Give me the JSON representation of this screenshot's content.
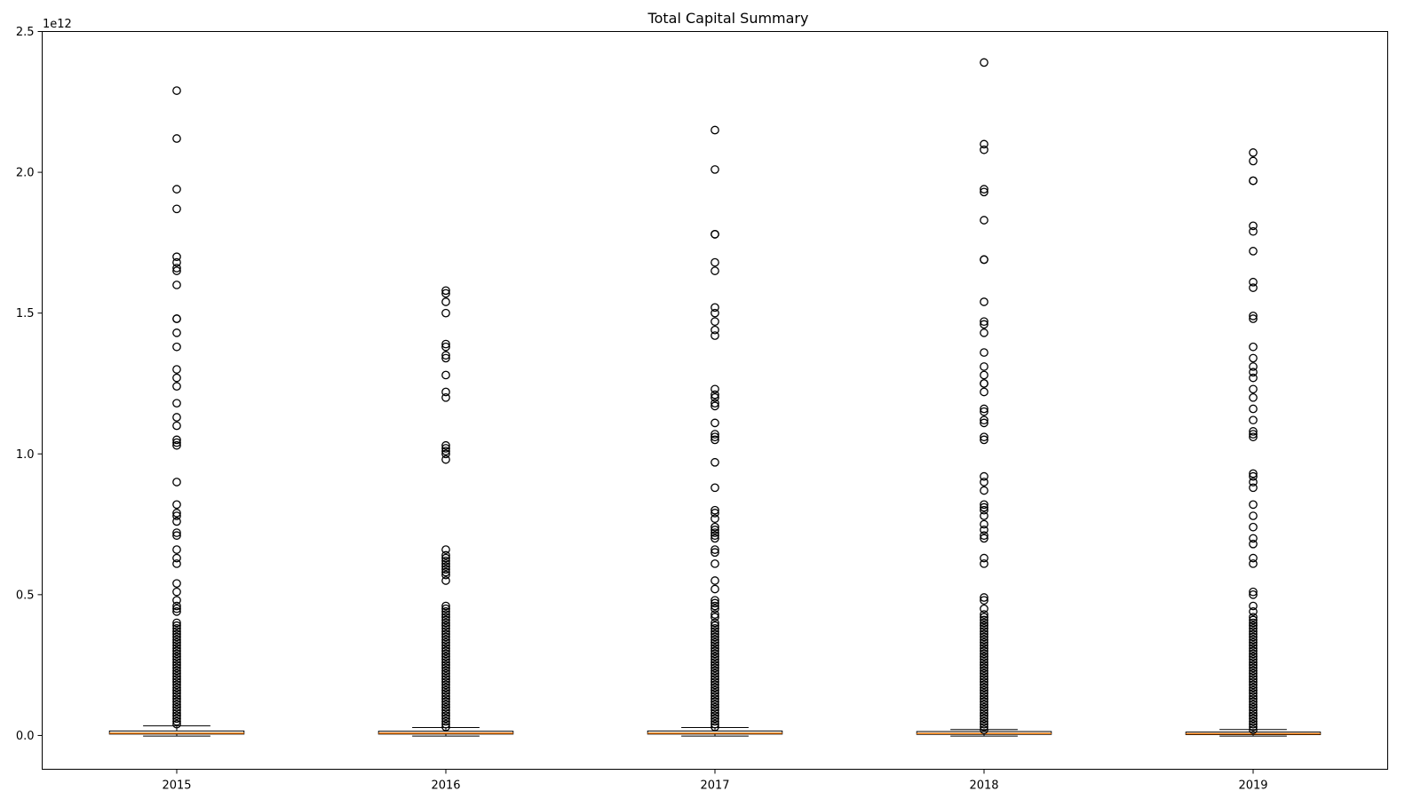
{
  "chart_data": {
    "type": "box",
    "title": "Total Capital Summary",
    "xlabel": "",
    "ylabel": "",
    "offset_text": "1e12",
    "ylim": [
      -0.12,
      2.5
    ],
    "yticks": [
      {
        "value": 0.0,
        "label": "0.0"
      },
      {
        "value": 0.5,
        "label": "0.5"
      },
      {
        "value": 1.0,
        "label": "1.0"
      },
      {
        "value": 1.5,
        "label": "1.5"
      },
      {
        "value": 2.0,
        "label": "2.0"
      },
      {
        "value": 2.5,
        "label": "2.5"
      }
    ],
    "grid": false,
    "categories": [
      "2015",
      "2016",
      "2017",
      "2018",
      "2019"
    ],
    "boxes": [
      {
        "category": "2015",
        "whisker_low": -0.002,
        "q1": 0.005,
        "median": 0.008,
        "q3": 0.016,
        "whisker_high": 0.034,
        "outliers": [
          2.29,
          2.12,
          1.94,
          1.87,
          1.7,
          1.68,
          1.66,
          1.65,
          1.6,
          1.48,
          1.48,
          1.43,
          1.38,
          1.3,
          1.27,
          1.24,
          1.18,
          1.13,
          1.1,
          1.05,
          1.04,
          1.03,
          0.9,
          0.82,
          0.79,
          0.78,
          0.76,
          0.72,
          0.71,
          0.66,
          0.63,
          0.61,
          0.54,
          0.51,
          0.48,
          0.46,
          0.45,
          0.44,
          0.4,
          0.39,
          0.38,
          0.37,
          0.36,
          0.35,
          0.34,
          0.33,
          0.32,
          0.31,
          0.3,
          0.29,
          0.28,
          0.27,
          0.26,
          0.25,
          0.24,
          0.23,
          0.22,
          0.21,
          0.2,
          0.19,
          0.18,
          0.17,
          0.16,
          0.15,
          0.14,
          0.13,
          0.12,
          0.11,
          0.1,
          0.09,
          0.08,
          0.07,
          0.06,
          0.05,
          0.04
        ]
      },
      {
        "category": "2016",
        "whisker_low": -0.002,
        "q1": 0.005,
        "median": 0.008,
        "q3": 0.015,
        "whisker_high": 0.028,
        "outliers": [
          1.58,
          1.57,
          1.54,
          1.5,
          1.39,
          1.38,
          1.35,
          1.34,
          1.28,
          1.22,
          1.2,
          1.03,
          1.02,
          1.01,
          1.0,
          0.98,
          0.66,
          0.64,
          0.63,
          0.62,
          0.61,
          0.6,
          0.59,
          0.58,
          0.57,
          0.55,
          0.46,
          0.45,
          0.44,
          0.43,
          0.42,
          0.41,
          0.4,
          0.39,
          0.38,
          0.37,
          0.36,
          0.35,
          0.34,
          0.33,
          0.32,
          0.31,
          0.3,
          0.29,
          0.28,
          0.27,
          0.26,
          0.25,
          0.24,
          0.23,
          0.22,
          0.21,
          0.2,
          0.19,
          0.18,
          0.17,
          0.16,
          0.15,
          0.14,
          0.13,
          0.12,
          0.11,
          0.1,
          0.09,
          0.08,
          0.07,
          0.06,
          0.05,
          0.04,
          0.03
        ]
      },
      {
        "category": "2017",
        "whisker_low": -0.002,
        "q1": 0.005,
        "median": 0.008,
        "q3": 0.016,
        "whisker_high": 0.028,
        "outliers": [
          2.15,
          2.01,
          1.78,
          1.78,
          1.68,
          1.65,
          1.52,
          1.5,
          1.47,
          1.44,
          1.42,
          1.23,
          1.21,
          1.2,
          1.18,
          1.17,
          1.11,
          1.07,
          1.06,
          1.05,
          0.97,
          0.88,
          0.8,
          0.79,
          0.77,
          0.74,
          0.73,
          0.72,
          0.71,
          0.7,
          0.66,
          0.65,
          0.61,
          0.55,
          0.52,
          0.48,
          0.47,
          0.46,
          0.45,
          0.43,
          0.42,
          0.4,
          0.39,
          0.38,
          0.37,
          0.36,
          0.35,
          0.34,
          0.33,
          0.32,
          0.31,
          0.3,
          0.29,
          0.28,
          0.27,
          0.26,
          0.25,
          0.24,
          0.23,
          0.22,
          0.21,
          0.2,
          0.19,
          0.18,
          0.17,
          0.16,
          0.15,
          0.14,
          0.13,
          0.12,
          0.11,
          0.1,
          0.09,
          0.08,
          0.07,
          0.06,
          0.05,
          0.04,
          0.03
        ]
      },
      {
        "category": "2018",
        "whisker_low": -0.002,
        "q1": 0.004,
        "median": 0.007,
        "q3": 0.014,
        "whisker_high": 0.021,
        "outliers": [
          2.39,
          2.1,
          2.08,
          1.94,
          1.93,
          1.83,
          1.69,
          1.69,
          1.54,
          1.47,
          1.46,
          1.43,
          1.36,
          1.31,
          1.28,
          1.25,
          1.25,
          1.22,
          1.16,
          1.15,
          1.12,
          1.11,
          1.06,
          1.05,
          0.92,
          0.9,
          0.87,
          0.82,
          0.81,
          0.8,
          0.78,
          0.75,
          0.73,
          0.71,
          0.7,
          0.63,
          0.61,
          0.49,
          0.48,
          0.45,
          0.43,
          0.42,
          0.41,
          0.4,
          0.39,
          0.38,
          0.37,
          0.36,
          0.35,
          0.34,
          0.33,
          0.32,
          0.31,
          0.3,
          0.29,
          0.28,
          0.27,
          0.26,
          0.25,
          0.24,
          0.23,
          0.22,
          0.21,
          0.2,
          0.19,
          0.18,
          0.17,
          0.16,
          0.15,
          0.14,
          0.13,
          0.12,
          0.11,
          0.1,
          0.09,
          0.08,
          0.07,
          0.06,
          0.05,
          0.04,
          0.03,
          0.02
        ]
      },
      {
        "category": "2019",
        "whisker_low": -0.002,
        "q1": 0.003,
        "median": 0.006,
        "q3": 0.012,
        "whisker_high": 0.021,
        "outliers": [
          2.07,
          2.04,
          1.97,
          1.97,
          1.81,
          1.79,
          1.72,
          1.61,
          1.59,
          1.49,
          1.48,
          1.38,
          1.34,
          1.31,
          1.29,
          1.27,
          1.23,
          1.2,
          1.16,
          1.12,
          1.08,
          1.07,
          1.06,
          0.93,
          0.92,
          0.9,
          0.88,
          0.82,
          0.78,
          0.74,
          0.7,
          0.68,
          0.63,
          0.61,
          0.51,
          0.5,
          0.46,
          0.44,
          0.42,
          0.41,
          0.4,
          0.39,
          0.38,
          0.37,
          0.36,
          0.35,
          0.34,
          0.33,
          0.32,
          0.31,
          0.3,
          0.29,
          0.28,
          0.27,
          0.26,
          0.25,
          0.24,
          0.23,
          0.22,
          0.21,
          0.2,
          0.19,
          0.18,
          0.17,
          0.16,
          0.15,
          0.14,
          0.13,
          0.12,
          0.11,
          0.1,
          0.09,
          0.08,
          0.07,
          0.06,
          0.05,
          0.04,
          0.03,
          0.02
        ]
      }
    ],
    "colors": {
      "box_edge": "#000000",
      "median": "#ff7f0e",
      "outlier_edge": "#000000",
      "axes": "#000000"
    }
  }
}
